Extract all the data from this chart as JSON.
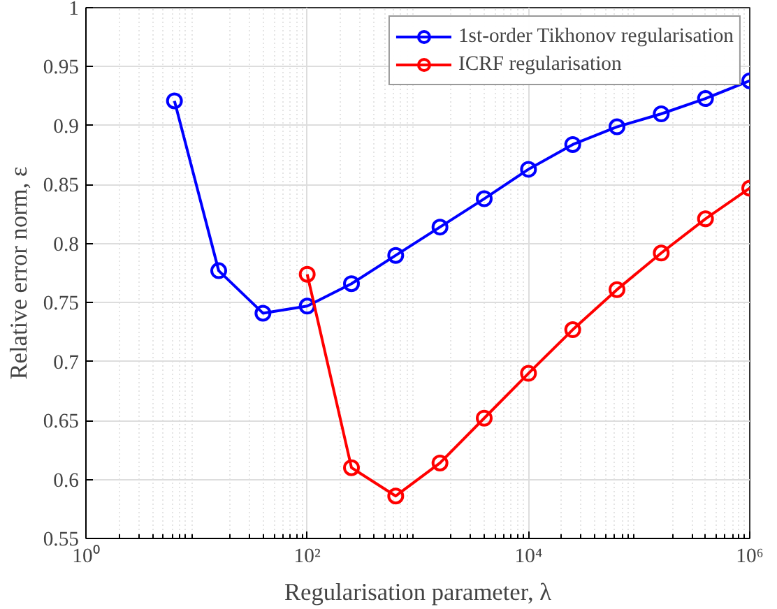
{
  "chart_data": {
    "type": "line",
    "xlabel": "Regularisation parameter, λ",
    "ylabel": "Relative error norm, ε",
    "log": "x",
    "grid": true,
    "legend": "top right",
    "marker": "circle",
    "line_style": "solid",
    "xlim": [
      1,
      1000000
    ],
    "ylim": [
      0.55,
      1
    ],
    "xticks": [
      {
        "value": 1,
        "label": "10⁰"
      },
      {
        "value": 100,
        "label": "10²"
      },
      {
        "value": 10000,
        "label": "10⁴"
      },
      {
        "value": 1000000,
        "label": "10⁶"
      }
    ],
    "yticks": [
      0.55,
      0.6,
      0.65,
      0.7,
      0.75,
      0.8,
      0.85,
      0.9,
      0.95,
      1
    ],
    "series": [
      {
        "name": "1st-order Tikhonov regularisation",
        "color": "#0000ff",
        "x": [
          6.31,
          15.85,
          39.81,
          100,
          251.2,
          631,
          1585,
          3981,
          10000,
          25119,
          63096,
          158489,
          398107,
          1000000
        ],
        "values": [
          0.921,
          0.777,
          0.741,
          0.747,
          0.766,
          0.79,
          0.814,
          0.838,
          0.863,
          0.884,
          0.899,
          0.91,
          0.923,
          0.938
        ]
      },
      {
        "name": "ICRF regularisation",
        "color": "#ff0000",
        "x": [
          100,
          251.2,
          631,
          1585,
          3981,
          10000,
          25119,
          63096,
          158489,
          398107,
          1000000
        ],
        "values": [
          0.774,
          0.61,
          0.586,
          0.614,
          0.652,
          0.69,
          0.727,
          0.761,
          0.792,
          0.821,
          0.847
        ]
      }
    ]
  }
}
